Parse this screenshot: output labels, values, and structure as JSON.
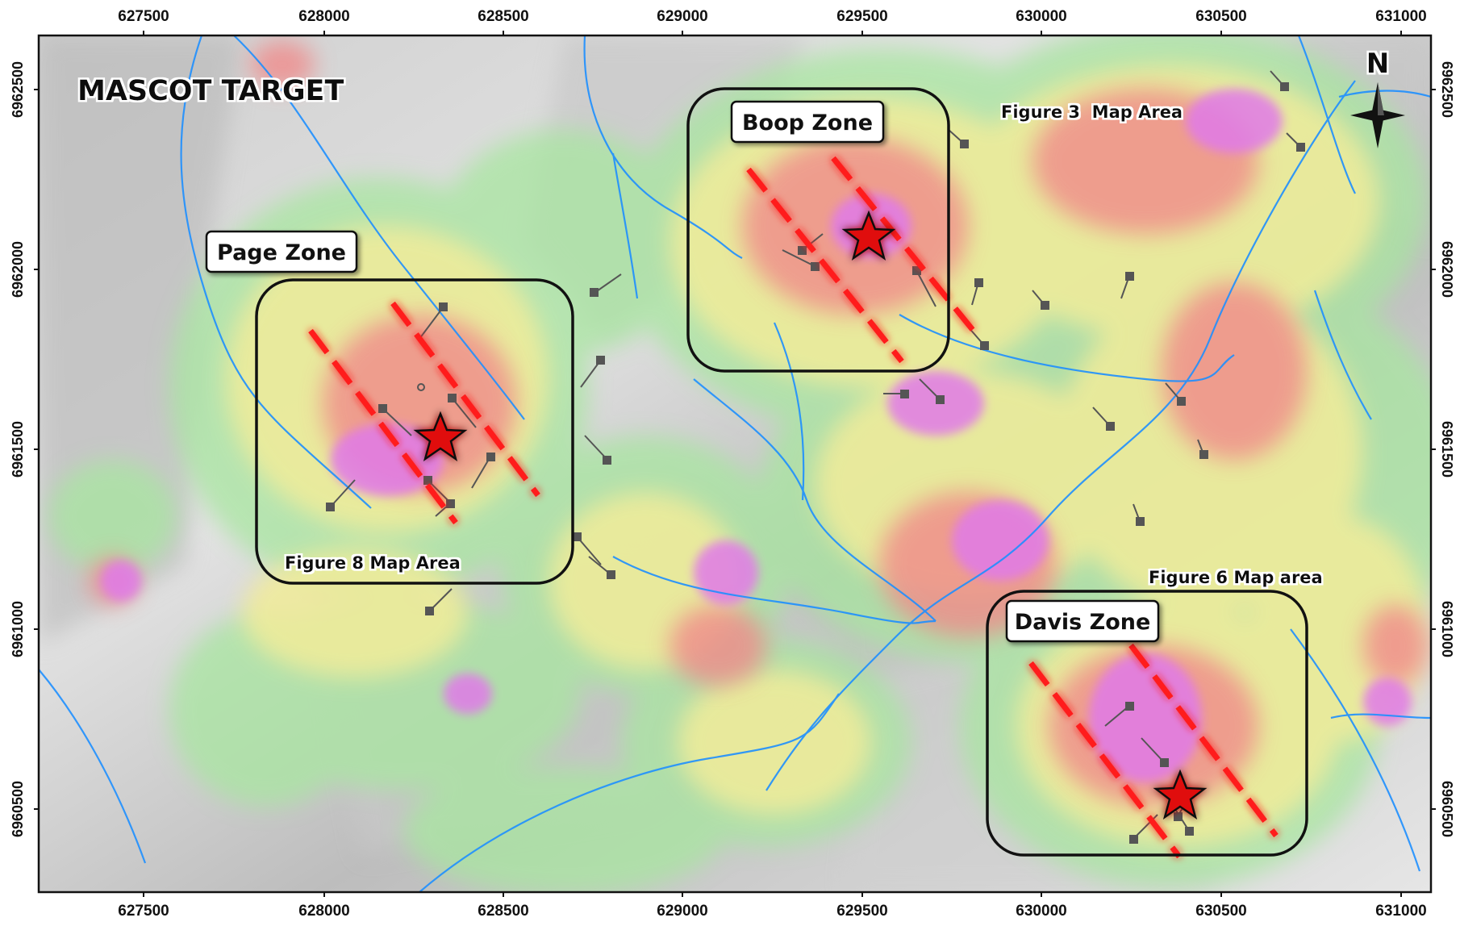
{
  "map": {
    "title": "MASCOT TARGET",
    "north_label": "N",
    "x_ticks": [
      "627500",
      "628000",
      "628500",
      "629000",
      "629500",
      "630000",
      "630500",
      "631000"
    ],
    "y_ticks": [
      "6962500",
      "6962000",
      "6961500",
      "6961000",
      "6960500"
    ],
    "zones": [
      {
        "name": "Boop Zone"
      },
      {
        "name": "Page Zone"
      },
      {
        "name": "Davis Zone"
      }
    ],
    "map_areas": [
      {
        "label": "Figure 3  Map Area"
      },
      {
        "label": "Figure 8 Map Area"
      },
      {
        "label": "Figure 6 Map area"
      }
    ],
    "colors": {
      "frame": "#111111",
      "hillshade": "#d6d6d6",
      "stream": "#1e8fff",
      "trend_line": "#ff1a1a",
      "star_fill": "#e01010",
      "anomaly_low": "#a8e6a0",
      "anomaly_mid": "#f2ec9a",
      "anomaly_high": "#f08a8a",
      "anomaly_peak": "#e07ae8"
    }
  }
}
